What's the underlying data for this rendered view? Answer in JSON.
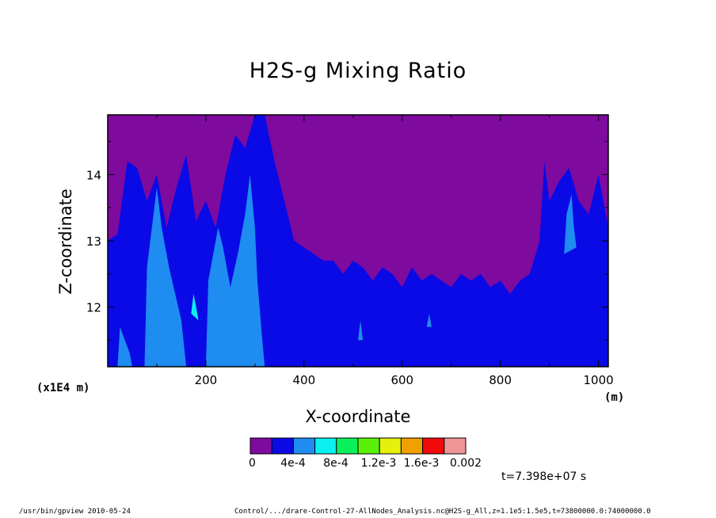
{
  "chart_data": {
    "type": "heatmap",
    "title": "H2S-g Mixing Ratio",
    "xlabel": "X-coordinate",
    "x_unit": "(m)",
    "ylabel": "Z-coordinate",
    "y_scale_note": "(x1E4 m)",
    "xlim": [
      0,
      1020
    ],
    "ylim": [
      11.1,
      14.9
    ],
    "x_ticks": [
      "200",
      "400",
      "600",
      "800",
      "1000"
    ],
    "x_tick_values": [
      200,
      400,
      600,
      800,
      1000
    ],
    "y_ticks": [
      "12",
      "13",
      "14"
    ],
    "y_tick_values": [
      12,
      13,
      14
    ],
    "colorbar": {
      "colors": [
        "#7e0a9e",
        "#0a0ae6",
        "#1e8cf0",
        "#0af0f0",
        "#0af05a",
        "#5af00a",
        "#e6f00a",
        "#f0a000",
        "#f00a0a",
        "#f09696"
      ],
      "labels": [
        "0",
        "4e-4",
        "8e-4",
        "1.2e-3",
        "1.6e-3",
        "0.002"
      ],
      "label_values": [
        0,
        0.0004,
        0.0008,
        0.0012,
        0.0016,
        0.002
      ]
    },
    "time_label": "t=7.398e+07 s",
    "boundary_low_to_mid": [
      [
        0,
        13.0
      ],
      [
        20,
        13.1
      ],
      [
        40,
        14.2
      ],
      [
        60,
        14.1
      ],
      [
        80,
        13.6
      ],
      [
        100,
        14.0
      ],
      [
        120,
        13.2
      ],
      [
        140,
        13.8
      ],
      [
        160,
        14.3
      ],
      [
        180,
        13.3
      ],
      [
        200,
        13.6
      ],
      [
        220,
        13.2
      ],
      [
        240,
        14.0
      ],
      [
        260,
        14.6
      ],
      [
        280,
        14.4
      ],
      [
        300,
        14.9
      ],
      [
        320,
        14.9
      ],
      [
        340,
        14.2
      ],
      [
        360,
        13.6
      ],
      [
        380,
        13.0
      ],
      [
        400,
        12.9
      ],
      [
        420,
        12.8
      ],
      [
        440,
        12.7
      ],
      [
        460,
        12.7
      ],
      [
        480,
        12.5
      ],
      [
        500,
        12.7
      ],
      [
        520,
        12.6
      ],
      [
        540,
        12.4
      ],
      [
        560,
        12.6
      ],
      [
        580,
        12.5
      ],
      [
        600,
        12.3
      ],
      [
        620,
        12.6
      ],
      [
        640,
        12.4
      ],
      [
        660,
        12.5
      ],
      [
        680,
        12.4
      ],
      [
        700,
        12.3
      ],
      [
        720,
        12.5
      ],
      [
        740,
        12.4
      ],
      [
        760,
        12.5
      ],
      [
        780,
        12.3
      ],
      [
        800,
        12.4
      ],
      [
        820,
        12.2
      ],
      [
        840,
        12.4
      ],
      [
        860,
        12.5
      ],
      [
        880,
        13.0
      ],
      [
        890,
        14.2
      ],
      [
        900,
        13.6
      ],
      [
        920,
        13.9
      ],
      [
        940,
        14.1
      ],
      [
        960,
        13.6
      ],
      [
        980,
        13.4
      ],
      [
        1000,
        14.0
      ],
      [
        1020,
        13.2
      ]
    ],
    "mid_regions": [
      [
        [
          20,
          11.1
        ],
        [
          25,
          11.7
        ],
        [
          35,
          11.5
        ],
        [
          45,
          11.3
        ],
        [
          50,
          11.1
        ]
      ],
      [
        [
          75,
          11.1
        ],
        [
          80,
          12.6
        ],
        [
          90,
          13.2
        ],
        [
          100,
          13.8
        ],
        [
          110,
          13.2
        ],
        [
          125,
          12.6
        ],
        [
          150,
          11.8
        ],
        [
          160,
          11.1
        ]
      ],
      [
        [
          200,
          11.1
        ],
        [
          205,
          12.4
        ],
        [
          215,
          12.8
        ],
        [
          225,
          13.2
        ],
        [
          235,
          12.9
        ],
        [
          250,
          12.3
        ],
        [
          265,
          12.8
        ],
        [
          280,
          13.4
        ],
        [
          290,
          14.0
        ],
        [
          300,
          13.2
        ],
        [
          305,
          12.4
        ],
        [
          315,
          11.5
        ],
        [
          320,
          11.1
        ]
      ],
      [
        [
          930,
          12.8
        ],
        [
          935,
          13.4
        ],
        [
          945,
          13.7
        ],
        [
          950,
          13.2
        ],
        [
          955,
          12.9
        ]
      ],
      [
        [
          510,
          11.5
        ],
        [
          515,
          11.8
        ],
        [
          520,
          11.5
        ]
      ],
      [
        [
          650,
          11.7
        ],
        [
          655,
          11.9
        ],
        [
          660,
          11.7
        ]
      ]
    ],
    "high_regions": [
      [
        [
          170,
          11.9
        ],
        [
          175,
          12.2
        ],
        [
          180,
          12.0
        ],
        [
          185,
          11.8
        ]
      ]
    ]
  },
  "footer": {
    "left": "/usr/bin/gpview  2010-05-24",
    "right": "Control/.../drare-Control-27-AllNodes_Analysis.nc@H2S-g_All,z=1.1e5:1.5e5,t=73800000.0:74000000.0"
  }
}
